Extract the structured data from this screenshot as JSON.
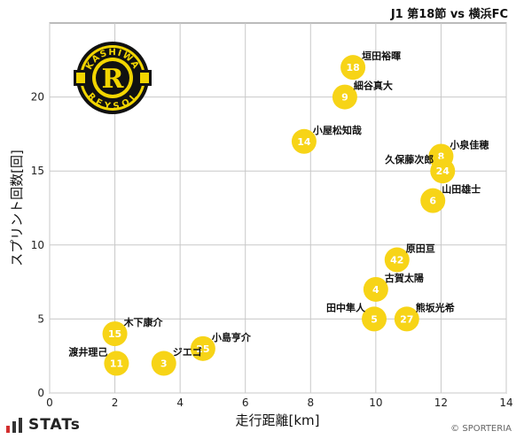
{
  "header": {
    "title": "J1 第18節 vs 横浜FC"
  },
  "brand": {
    "name": "STATs"
  },
  "copyright": "© SPORTERIA",
  "logo": {
    "top": "KASHIWA",
    "bottom": "REYSOL",
    "letter": "R",
    "primary_color": "#f2d500",
    "dark_color": "#111111"
  },
  "marker_color": "#f7d417",
  "chart_data": {
    "type": "scatter",
    "xlabel": "走行距離[km]",
    "ylabel": "スプリント回数[回]",
    "xlim": [
      0,
      14
    ],
    "ylim": [
      0,
      25
    ],
    "xticks": [
      0,
      2,
      4,
      6,
      8,
      10,
      12,
      14
    ],
    "yticks": [
      0,
      5,
      10,
      15,
      20
    ],
    "grid": true,
    "points": [
      {
        "number": "18",
        "name": "垣田裕暉",
        "x": 9.3,
        "y": 22,
        "label_pos": "right"
      },
      {
        "number": "9",
        "name": "細谷真大",
        "x": 9.05,
        "y": 20,
        "label_pos": "right"
      },
      {
        "number": "14",
        "name": "小屋松知哉",
        "x": 7.8,
        "y": 17,
        "label_pos": "right"
      },
      {
        "number": "8",
        "name": "小泉佳穂",
        "x": 12.0,
        "y": 16,
        "label_pos": "right"
      },
      {
        "number": "24",
        "name": "久保藤次郎",
        "x": 12.05,
        "y": 15,
        "label_pos": "left"
      },
      {
        "number": "6",
        "name": "山田雄士",
        "x": 11.75,
        "y": 13,
        "label_pos": "right"
      },
      {
        "number": "42",
        "name": "原田亘",
        "x": 10.65,
        "y": 9,
        "label_pos": "right"
      },
      {
        "number": "4",
        "name": "古賀太陽",
        "x": 10.0,
        "y": 7,
        "label_pos": "right"
      },
      {
        "number": "5",
        "name": "田中隼人",
        "x": 9.95,
        "y": 5,
        "label_pos": "left"
      },
      {
        "number": "27",
        "name": "熊坂光希",
        "x": 10.95,
        "y": 5,
        "label_pos": "right"
      },
      {
        "number": "15",
        "name": "木下康介",
        "x": 2.0,
        "y": 4,
        "label_pos": "right"
      },
      {
        "number": "25",
        "name": "小島亨介",
        "x": 4.7,
        "y": 3,
        "label_pos": "right"
      },
      {
        "number": "11",
        "name": "渡井理己",
        "x": 2.05,
        "y": 2,
        "label_pos": "left"
      },
      {
        "number": "3",
        "name": "ジエゴ",
        "x": 3.5,
        "y": 2,
        "label_pos": "right"
      }
    ]
  }
}
